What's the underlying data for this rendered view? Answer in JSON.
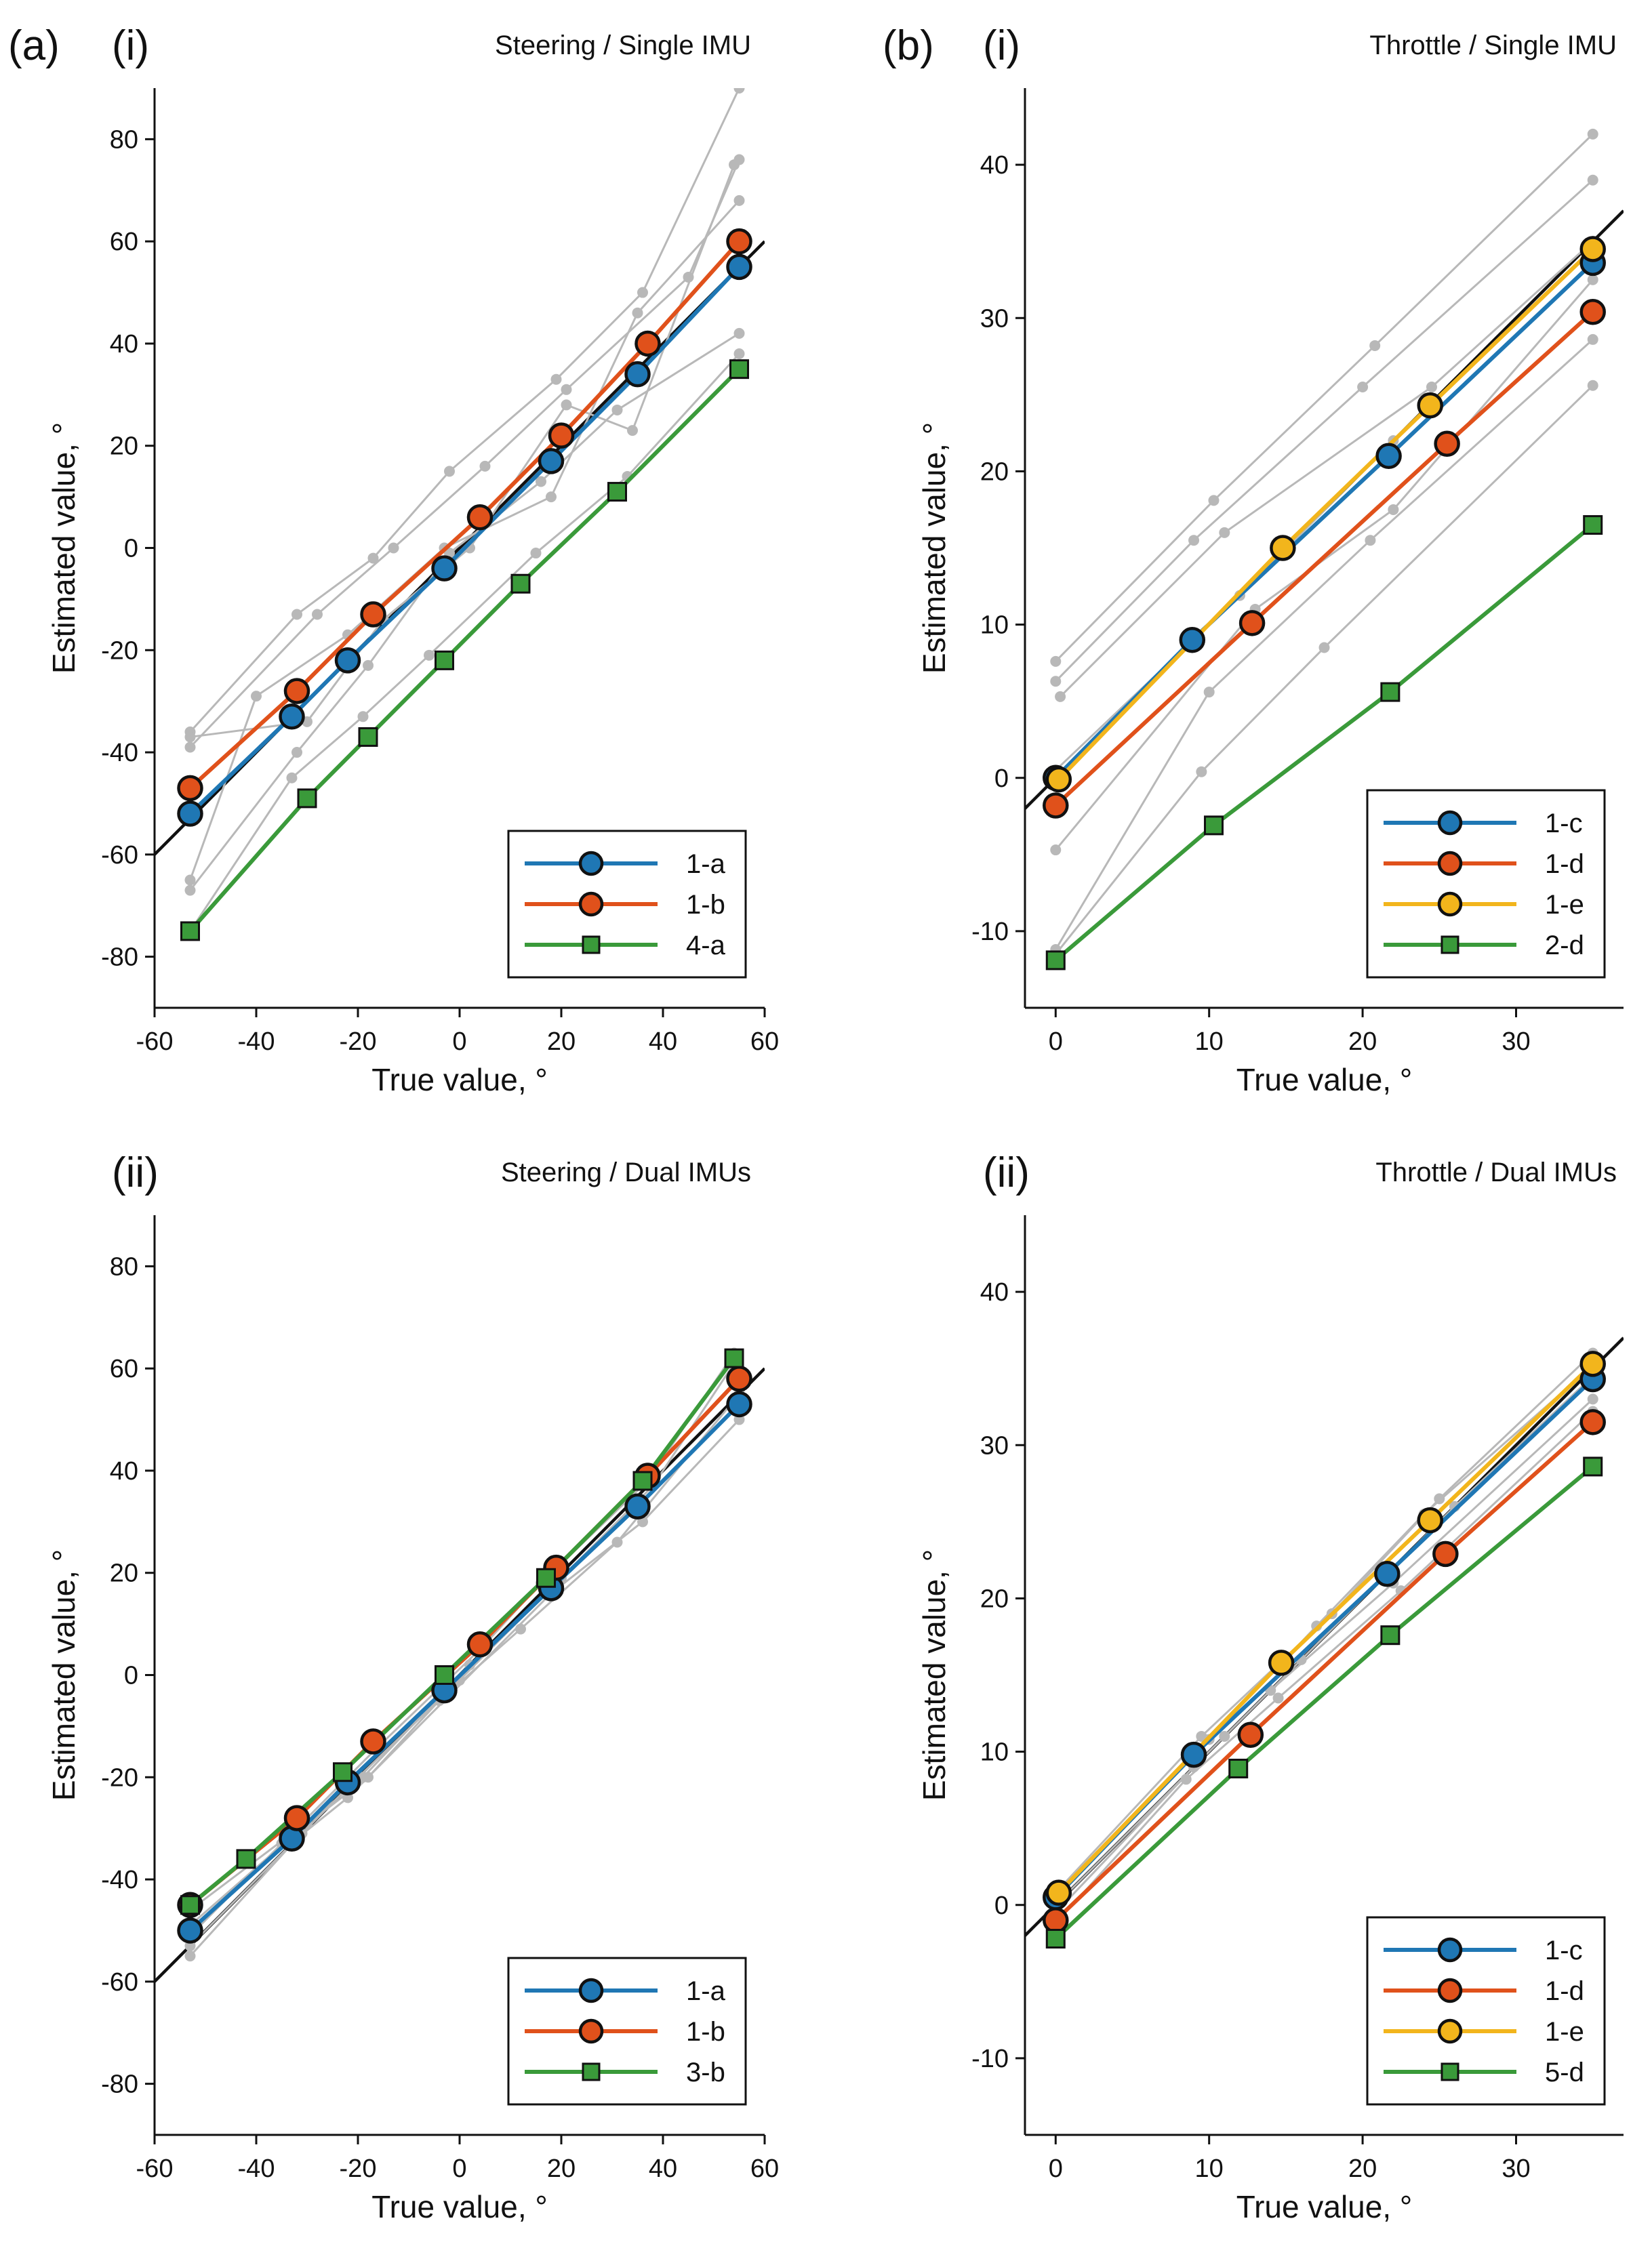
{
  "figure": {
    "label_a": "(a)",
    "label_b": "(b)",
    "xlabel": "True value, °",
    "ylabel": "Estimated value, °"
  },
  "chart_data": [
    {
      "id": "a-i",
      "type": "line",
      "panel_label": "(i)",
      "title": "Steering / Single IMU",
      "xlabel": "True value, °",
      "ylabel": "Estimated value, °",
      "xlim": [
        -60,
        60
      ],
      "ylim": [
        -90,
        90
      ],
      "xticks": [
        -60,
        -40,
        -20,
        0,
        20,
        40,
        60
      ],
      "yticks": [
        -80,
        -60,
        -40,
        -20,
        0,
        20,
        40,
        60,
        80
      ],
      "identity_line": true,
      "gray_series": [
        {
          "x": [
            -53,
            -32,
            -17,
            -2,
            19,
            36,
            55
          ],
          "y": [
            -36,
            -13,
            -2,
            15,
            33,
            50,
            90
          ]
        },
        {
          "x": [
            -53,
            -28,
            -13,
            5,
            21,
            45,
            55
          ],
          "y": [
            -39,
            -13,
            0,
            16,
            31,
            53,
            76
          ]
        },
        {
          "x": [
            -53,
            -40,
            -22,
            -3,
            18,
            35,
            55
          ],
          "y": [
            -65,
            -29,
            -17,
            0,
            10,
            46,
            68
          ]
        },
        {
          "x": [
            -53,
            -32,
            -18,
            -2,
            16,
            31,
            55
          ],
          "y": [
            -67,
            -40,
            -23,
            -1,
            13,
            27,
            42
          ]
        },
        {
          "x": [
            -53,
            -33,
            -19,
            -6,
            15,
            33,
            55
          ],
          "y": [
            -75,
            -45,
            -33,
            -21,
            -1,
            14,
            38
          ]
        },
        {
          "x": [
            -53,
            -30,
            -15,
            2,
            21,
            34,
            54
          ],
          "y": [
            -37,
            -34,
            -14,
            0,
            28,
            23,
            75
          ]
        }
      ],
      "series": [
        {
          "name": "1-a",
          "color": "#1f77b4",
          "marker": "circle",
          "x": [
            -53,
            -33,
            -22,
            -3,
            18,
            35,
            55
          ],
          "y": [
            -52,
            -33,
            -22,
            -4,
            17,
            34,
            55
          ]
        },
        {
          "name": "1-b",
          "color": "#e0511b",
          "marker": "circle",
          "x": [
            -53,
            -32,
            -17,
            4,
            20,
            37,
            55
          ],
          "y": [
            -47,
            -28,
            -13,
            6,
            22,
            40,
            60
          ]
        },
        {
          "name": "4-a",
          "color": "#3a9a3a",
          "marker": "square",
          "x": [
            -53,
            -30,
            -18,
            -3,
            12,
            31,
            55
          ],
          "y": [
            -75,
            -49,
            -37,
            -22,
            -7,
            11,
            35
          ]
        }
      ]
    },
    {
      "id": "b-i",
      "type": "line",
      "panel_label": "(i)",
      "title": "Throttle / Single IMU",
      "xlabel": "True value, °",
      "ylabel": "Estimated value, °",
      "xlim": [
        -2,
        37
      ],
      "ylim": [
        -15,
        45
      ],
      "xticks": [
        0,
        10,
        20,
        30
      ],
      "yticks": [
        -10,
        0,
        10,
        20,
        30,
        40
      ],
      "identity_line": true,
      "gray_series": [
        {
          "x": [
            0,
            10.3,
            20.8,
            35
          ],
          "y": [
            7.6,
            18.1,
            28.2,
            42
          ]
        },
        {
          "x": [
            0,
            9,
            20,
            35
          ],
          "y": [
            6.3,
            15.5,
            25.5,
            39
          ]
        },
        {
          "x": [
            0.3,
            11,
            24.5,
            35
          ],
          "y": [
            5.3,
            16,
            25.5,
            35
          ]
        },
        {
          "x": [
            0,
            12,
            22,
            35
          ],
          "y": [
            0.5,
            11.9,
            22,
            34.5
          ]
        },
        {
          "x": [
            0,
            13,
            22,
            35
          ],
          "y": [
            -4.7,
            11,
            17.5,
            32.5
          ]
        },
        {
          "x": [
            0,
            10,
            20.5,
            35
          ],
          "y": [
            -11.2,
            5.6,
            15.5,
            28.6
          ]
        },
        {
          "x": [
            0,
            9.5,
            17.5,
            35
          ],
          "y": [
            -11.5,
            0.4,
            8.5,
            25.6
          ]
        }
      ],
      "series": [
        {
          "name": "1-c",
          "color": "#1f77b4",
          "marker": "circle",
          "x": [
            0,
            8.9,
            21.7,
            35
          ],
          "y": [
            0,
            9,
            21,
            33.6
          ]
        },
        {
          "name": "1-d",
          "color": "#e0511b",
          "marker": "circle",
          "x": [
            0,
            12.8,
            25.5,
            35
          ],
          "y": [
            -1.8,
            10.1,
            21.8,
            30.4
          ]
        },
        {
          "name": "1-e",
          "color": "#f2b51c",
          "marker": "circle",
          "x": [
            0.2,
            14.8,
            24.4,
            35
          ],
          "y": [
            -0.1,
            15,
            24.3,
            34.5
          ]
        },
        {
          "name": "2-d",
          "color": "#3a9a3a",
          "marker": "square",
          "x": [
            0,
            10.3,
            21.8,
            35
          ],
          "y": [
            -11.9,
            -3.1,
            5.6,
            16.5
          ]
        }
      ]
    },
    {
      "id": "a-ii",
      "type": "line",
      "panel_label": "(ii)",
      "title": "Steering / Dual IMUs",
      "xlabel": "True value, °",
      "ylabel": "Estimated value, °",
      "xlim": [
        -60,
        60
      ],
      "ylim": [
        -90,
        90
      ],
      "xticks": [
        -60,
        -40,
        -20,
        0,
        20,
        40,
        60
      ],
      "yticks": [
        -80,
        -60,
        -40,
        -20,
        0,
        20,
        40,
        60,
        80
      ],
      "identity_line": true,
      "gray_series": [
        {
          "x": [
            -53,
            -32,
            -22,
            -2,
            18,
            36,
            55
          ],
          "y": [
            -55,
            -32,
            -24,
            -4,
            16,
            30,
            50
          ]
        },
        {
          "x": [
            -53,
            -31,
            -21,
            0,
            19,
            35,
            55
          ],
          "y": [
            -53,
            -31,
            -21,
            -1,
            18,
            33,
            53
          ]
        },
        {
          "x": [
            -53,
            -30,
            -19,
            2,
            20,
            38,
            54
          ],
          "y": [
            -49,
            -29,
            -20,
            2,
            19,
            37,
            61
          ]
        },
        {
          "x": [
            -53,
            -35,
            -18,
            -4,
            12,
            31,
            55
          ],
          "y": [
            -51,
            -33,
            -20,
            -5,
            9,
            26,
            55
          ]
        },
        {
          "x": [
            -53,
            -33,
            -16,
            4,
            16,
            37,
            54
          ],
          "y": [
            -46,
            -31,
            -14,
            5,
            18,
            38,
            63
          ]
        }
      ],
      "series": [
        {
          "name": "1-a",
          "color": "#1f77b4",
          "marker": "circle",
          "x": [
            -53,
            -33,
            -22,
            -3,
            18,
            35,
            55
          ],
          "y": [
            -50,
            -32,
            -21,
            -3,
            17,
            33,
            53
          ]
        },
        {
          "name": "1-b",
          "color": "#e0511b",
          "marker": "circle",
          "x": [
            -53,
            -32,
            -17,
            4,
            19,
            37,
            55
          ],
          "y": [
            -45,
            -28,
            -13,
            6,
            21,
            39,
            58
          ]
        },
        {
          "name": "3-b",
          "color": "#3a9a3a",
          "marker": "square",
          "x": [
            -53,
            -42,
            -23,
            -3,
            17,
            36,
            54
          ],
          "y": [
            -45,
            -36,
            -19,
            0,
            19,
            38,
            62
          ]
        }
      ]
    },
    {
      "id": "b-ii",
      "type": "line",
      "panel_label": "(ii)",
      "title": "Throttle / Dual IMUs",
      "xlabel": "True value, °",
      "ylabel": "Estimated value, °",
      "xlim": [
        -2,
        37
      ],
      "ylim": [
        -15,
        45
      ],
      "xticks": [
        0,
        10,
        20,
        30
      ],
      "yticks": [
        -10,
        0,
        10,
        20,
        30,
        40
      ],
      "identity_line": true,
      "gray_series": [
        {
          "x": [
            0,
            9.5,
            18,
            25,
            35
          ],
          "y": [
            0.8,
            11,
            19,
            26.5,
            36
          ]
        },
        {
          "x": [
            0,
            10,
            17,
            24,
            35
          ],
          "y": [
            0.4,
            10.8,
            18.2,
            25.5,
            35.2
          ]
        },
        {
          "x": [
            0,
            9,
            14,
            22,
            35
          ],
          "y": [
            -0.5,
            9,
            14,
            21,
            33
          ]
        },
        {
          "x": [
            0,
            11,
            16,
            26,
            35
          ],
          "y": [
            0,
            11,
            16,
            26,
            34.5
          ]
        },
        {
          "x": [
            0,
            8.5,
            14.5,
            22.5,
            35
          ],
          "y": [
            -1.2,
            8.2,
            13.5,
            20.5,
            32.2
          ]
        }
      ],
      "series": [
        {
          "name": "1-c",
          "color": "#1f77b4",
          "marker": "circle",
          "x": [
            0,
            9,
            21.6,
            35
          ],
          "y": [
            0.5,
            9.8,
            21.6,
            34.3
          ]
        },
        {
          "name": "1-d",
          "color": "#e0511b",
          "marker": "circle",
          "x": [
            0,
            12.7,
            25.4,
            35
          ],
          "y": [
            -1,
            11.1,
            22.9,
            31.5
          ]
        },
        {
          "name": "1-e",
          "color": "#f2b51c",
          "marker": "circle",
          "x": [
            0.2,
            14.7,
            24.4,
            35
          ],
          "y": [
            0.8,
            15.8,
            25.1,
            35.3
          ]
        },
        {
          "name": "5-d",
          "color": "#3a9a3a",
          "marker": "square",
          "x": [
            0,
            11.9,
            21.8,
            35
          ],
          "y": [
            -2.2,
            8.9,
            17.6,
            28.6
          ]
        }
      ]
    }
  ]
}
